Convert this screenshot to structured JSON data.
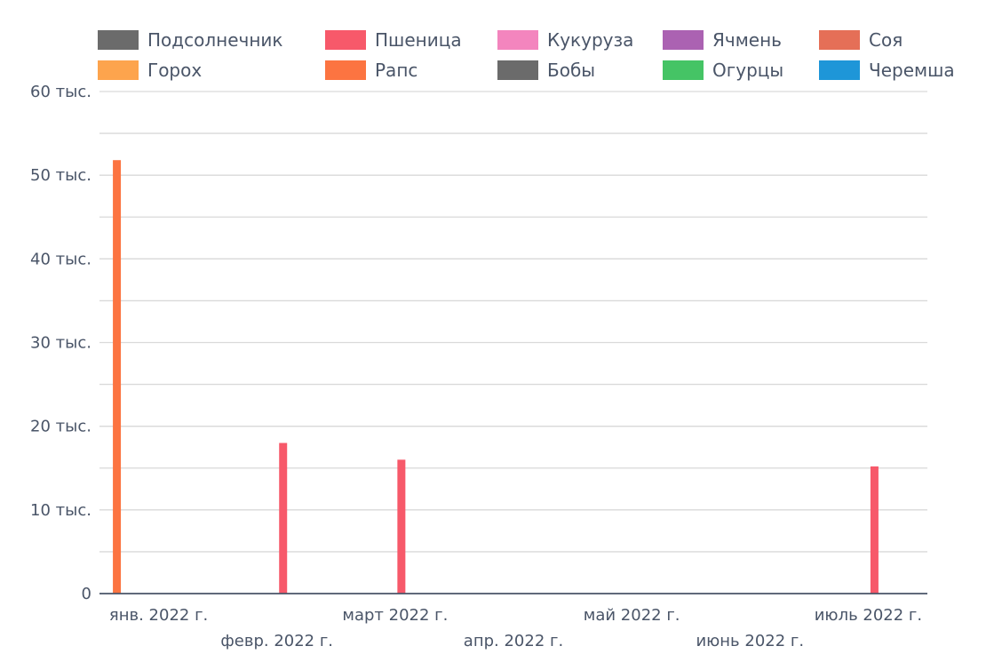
{
  "chart_data": {
    "type": "bar",
    "series": [
      {
        "name": "Подсолнечник",
        "color": "#6b6b6b",
        "values": [
          0,
          0,
          0,
          0,
          0,
          0,
          0
        ]
      },
      {
        "name": "Пшеница",
        "color": "#f7596a",
        "values": [
          0,
          18000,
          16000,
          0,
          0,
          0,
          15200
        ]
      },
      {
        "name": "Кукуруза",
        "color": "#f385be",
        "values": [
          0,
          0,
          0,
          0,
          0,
          0,
          0
        ]
      },
      {
        "name": "Ячмень",
        "color": "#ab62b2",
        "values": [
          0,
          0,
          0,
          0,
          0,
          0,
          0
        ]
      },
      {
        "name": "Соя",
        "color": "#e56f57",
        "values": [
          0,
          0,
          0,
          0,
          0,
          0,
          0
        ]
      },
      {
        "name": "Горох",
        "color": "#fda44d",
        "values": [
          0,
          0,
          0,
          0,
          0,
          0,
          0
        ]
      },
      {
        "name": "Рапс",
        "color": "#fc7441",
        "values": [
          51800,
          0,
          0,
          0,
          0,
          0,
          0
        ]
      },
      {
        "name": "Бобы",
        "color": "#6b6b6b",
        "values": [
          0,
          0,
          0,
          0,
          0,
          0,
          0
        ]
      },
      {
        "name": "Огурцы",
        "color": "#45c465",
        "values": [
          0,
          0,
          0,
          0,
          0,
          0,
          0
        ]
      },
      {
        "name": "Черемша",
        "color": "#1e96d8",
        "values": [
          0,
          0,
          0,
          0,
          0,
          0,
          0
        ]
      }
    ],
    "categories": [
      "янв. 2022 г.",
      "февр. 2022 г.",
      "март 2022 г.",
      "апр. 2022 г.",
      "май 2022 г.",
      "июнь 2022 г.",
      "июль 2022 г."
    ],
    "ylim": [
      0,
      60000
    ],
    "yticks": [
      {
        "value": 0,
        "label": "0"
      },
      {
        "value": 10000,
        "label": "10 тыс."
      },
      {
        "value": 20000,
        "label": "20 тыс."
      },
      {
        "value": 30000,
        "label": "30 тыс."
      },
      {
        "value": 40000,
        "label": "40 тыс."
      },
      {
        "value": 50000,
        "label": "50 тыс."
      },
      {
        "value": 60000,
        "label": "60 тыс."
      }
    ],
    "grid": true,
    "legend_position": "top",
    "axis_color": "#4a5568",
    "grid_color": "#d9d9d9"
  }
}
